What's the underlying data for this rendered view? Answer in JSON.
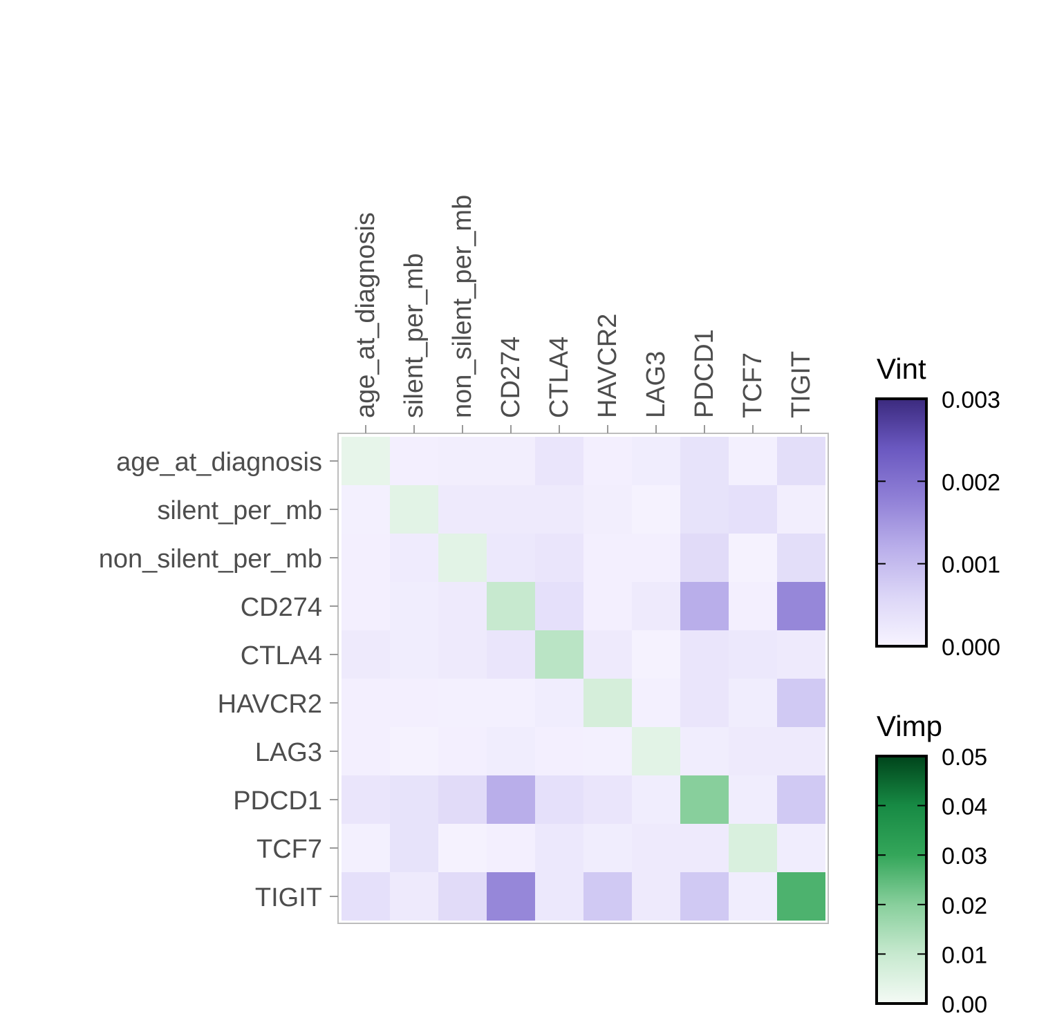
{
  "chart_data": {
    "type": "heatmap",
    "title": "",
    "xlabel": "",
    "ylabel": "",
    "x_labels": [
      "age_at_diagnosis",
      "silent_per_mb",
      "non_silent_per_mb",
      "CD274",
      "CTLA4",
      "HAVCR2",
      "LAG3",
      "PDCD1",
      "TCF7",
      "TIGIT"
    ],
    "y_labels": [
      "age_at_diagnosis",
      "silent_per_mb",
      "non_silent_per_mb",
      "CD274",
      "CTLA4",
      "HAVCR2",
      "LAG3",
      "PDCD1",
      "TCF7",
      "TIGIT"
    ],
    "vint": [
      [
        null,
        0.0001,
        0.00012,
        0.00012,
        0.0003,
        0.0001,
        0.00015,
        0.00035,
        8e-05,
        0.00045
      ],
      [
        8e-05,
        null,
        0.0002,
        0.0002,
        0.0002,
        0.00012,
        4e-05,
        0.00035,
        0.0004,
        0.00012
      ],
      [
        0.0001,
        0.00018,
        null,
        0.00025,
        0.0003,
        0.0001,
        0.0001,
        0.0005,
        5e-05,
        0.00045
      ],
      [
        0.0001,
        0.00015,
        0.0002,
        null,
        0.0004,
        0.0001,
        0.0002,
        0.0012,
        0.0001,
        0.0017
      ],
      [
        0.0002,
        0.00015,
        0.0002,
        0.0003,
        null,
        0.0002,
        5e-05,
        0.0003,
        0.00025,
        0.0002
      ],
      [
        0.0001,
        0.0001,
        8e-05,
        8e-05,
        0.00015,
        null,
        8e-05,
        0.0003,
        0.00015,
        0.0008
      ],
      [
        0.0001,
        5e-05,
        0.0001,
        0.00015,
        0.0001,
        8e-05,
        null,
        0.00015,
        0.0002,
        0.0002
      ],
      [
        0.0003,
        0.00035,
        0.0005,
        0.0012,
        0.0004,
        0.0003,
        0.00015,
        null,
        0.00015,
        0.0008
      ],
      [
        8e-05,
        0.00035,
        5e-05,
        0.0001,
        0.00025,
        0.00015,
        0.0002,
        0.0002,
        null,
        0.00015
      ],
      [
        0.0004,
        0.0002,
        0.0005,
        0.0017,
        0.00025,
        0.0008,
        0.0002,
        0.0008,
        0.00015,
        null
      ]
    ],
    "vimp": [
      0.003,
      0.004,
      0.004,
      0.01,
      0.012,
      0.007,
      0.004,
      0.02,
      0.006,
      0.027
    ],
    "legends": [
      {
        "title": "Vint",
        "range": [
          0,
          0.003
        ],
        "ticks": [
          "0.000",
          "0.001",
          "0.002",
          "0.003"
        ],
        "colors": [
          "#f7f4ff",
          "#dcd6f7",
          "#b9aeea",
          "#8f7fd6",
          "#6a58c0",
          "#3b2a7e"
        ]
      },
      {
        "title": "Vimp",
        "range": [
          0,
          0.05
        ],
        "ticks": [
          "0.00",
          "0.01",
          "0.02",
          "0.03",
          "0.04",
          "0.05"
        ],
        "colors": [
          "#f4faf5",
          "#c7e9cf",
          "#88cf9c",
          "#34a65a",
          "#178a44",
          "#00441b"
        ]
      }
    ]
  }
}
